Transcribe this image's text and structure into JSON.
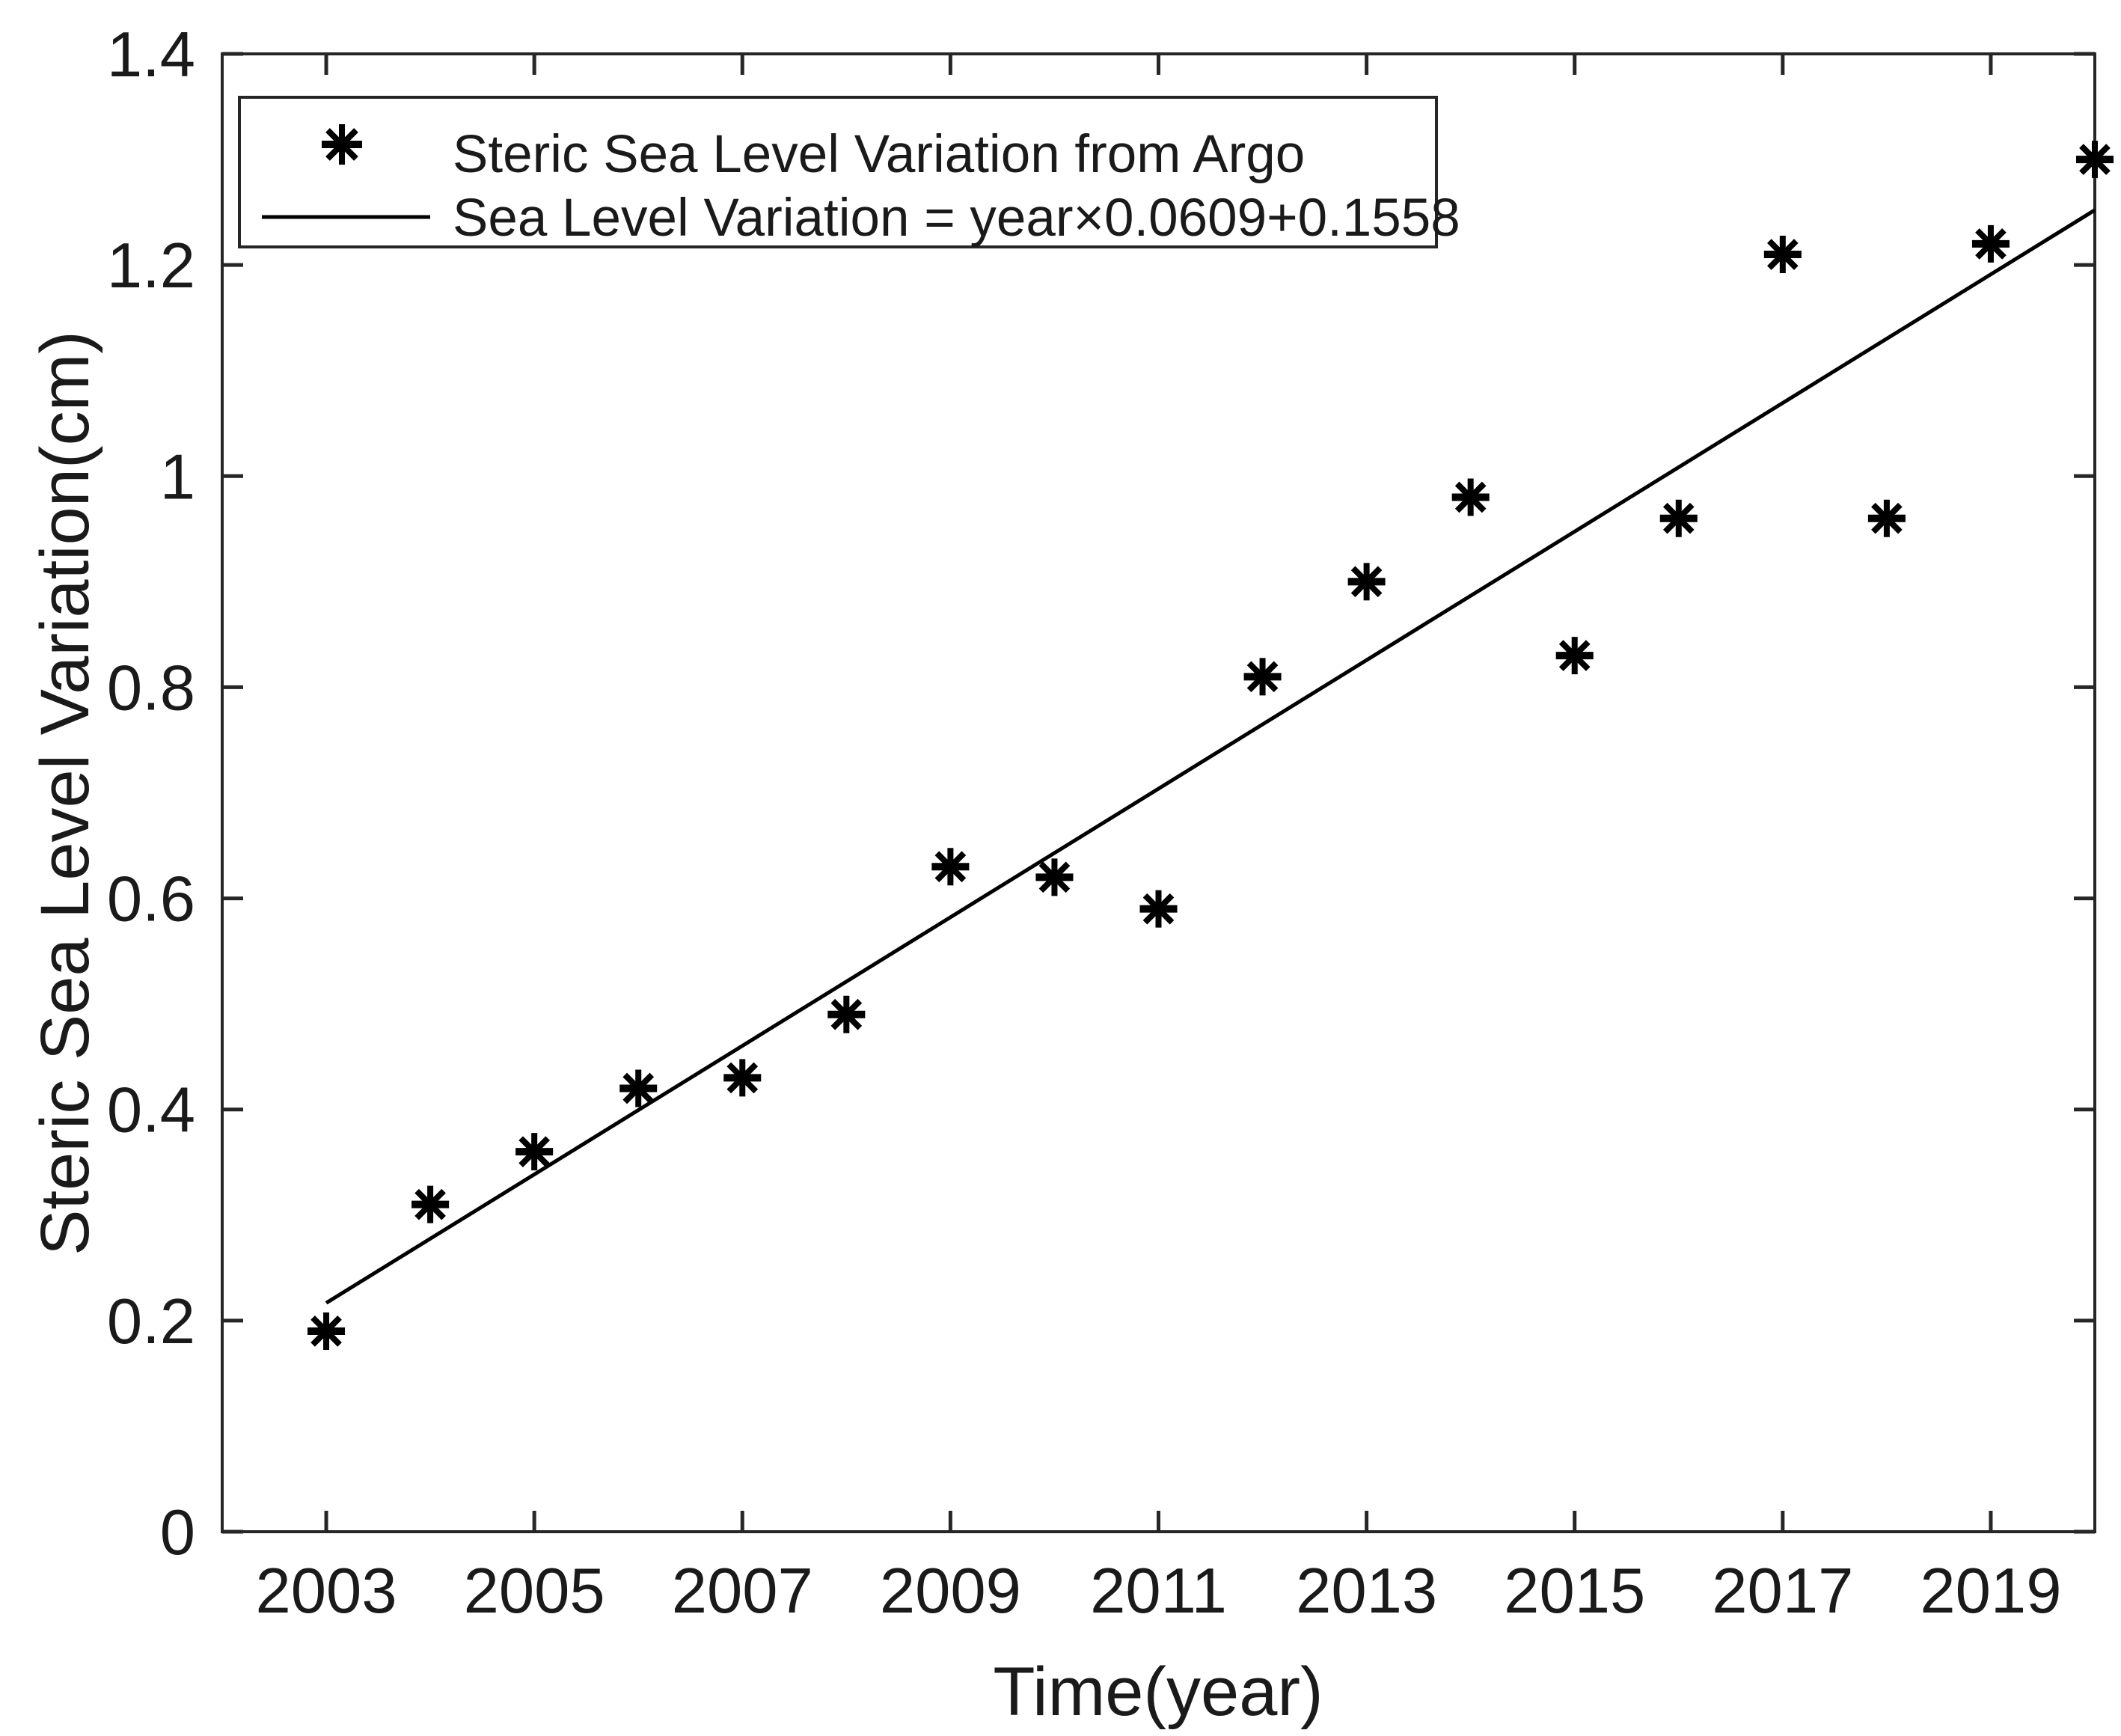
{
  "chart_data": {
    "type": "scatter",
    "title": "",
    "xlabel": "Time(year)",
    "ylabel": "Steric Sea Level Variation(cm)",
    "xlim": [
      2002,
      2020
    ],
    "ylim": [
      0,
      1.4
    ],
    "grid": false,
    "legend_position": "top-left",
    "xticks": {
      "values": [
        2003,
        2005,
        2007,
        2009,
        2011,
        2013,
        2015,
        2017,
        2019
      ],
      "labels": [
        "2003",
        "2005",
        "2007",
        "2009",
        "2011",
        "2013",
        "2015",
        "2017",
        "2019"
      ]
    },
    "yticks": {
      "values": [
        0,
        0.2,
        0.4,
        0.6,
        0.8,
        1,
        1.2,
        1.4
      ],
      "labels": [
        "0",
        "0.2",
        "0.4",
        "0.6",
        "0.8",
        "1",
        "1.2",
        "1.4"
      ]
    },
    "series": [
      {
        "name": "Steric Sea Level Variation from Argo",
        "type": "scatter",
        "marker": "asterisk",
        "color": "#000000",
        "x": [
          2003,
          2004,
          2005,
          2006,
          2007,
          2008,
          2009,
          2010,
          2011,
          2012,
          2013,
          2014,
          2015,
          2016,
          2017,
          2018,
          2019,
          2020
        ],
        "y": [
          0.19,
          0.31,
          0.36,
          0.42,
          0.43,
          0.49,
          0.63,
          0.62,
          0.59,
          0.81,
          0.9,
          0.98,
          0.83,
          0.96,
          1.21,
          0.96,
          1.22,
          1.3
        ]
      },
      {
        "name": "Sea Level Variation = year×0.0609+0.1558",
        "type": "line",
        "color": "#000000",
        "equation": {
          "slope": 0.0609,
          "intercept": 0.1558,
          "x_origin_year": 2002
        },
        "x_start": 2003,
        "x_end": 2020
      }
    ]
  },
  "legend": {
    "entries": [
      {
        "label": "Steric Sea Level Variation from Argo",
        "marker": "asterisk"
      },
      {
        "label": "Sea Level Variation = year×0.0609+0.1558",
        "marker": "line"
      }
    ]
  },
  "colors": {
    "axis": "#262626",
    "text": "#000000",
    "marker": "#000000",
    "trend_line": "#000000"
  }
}
